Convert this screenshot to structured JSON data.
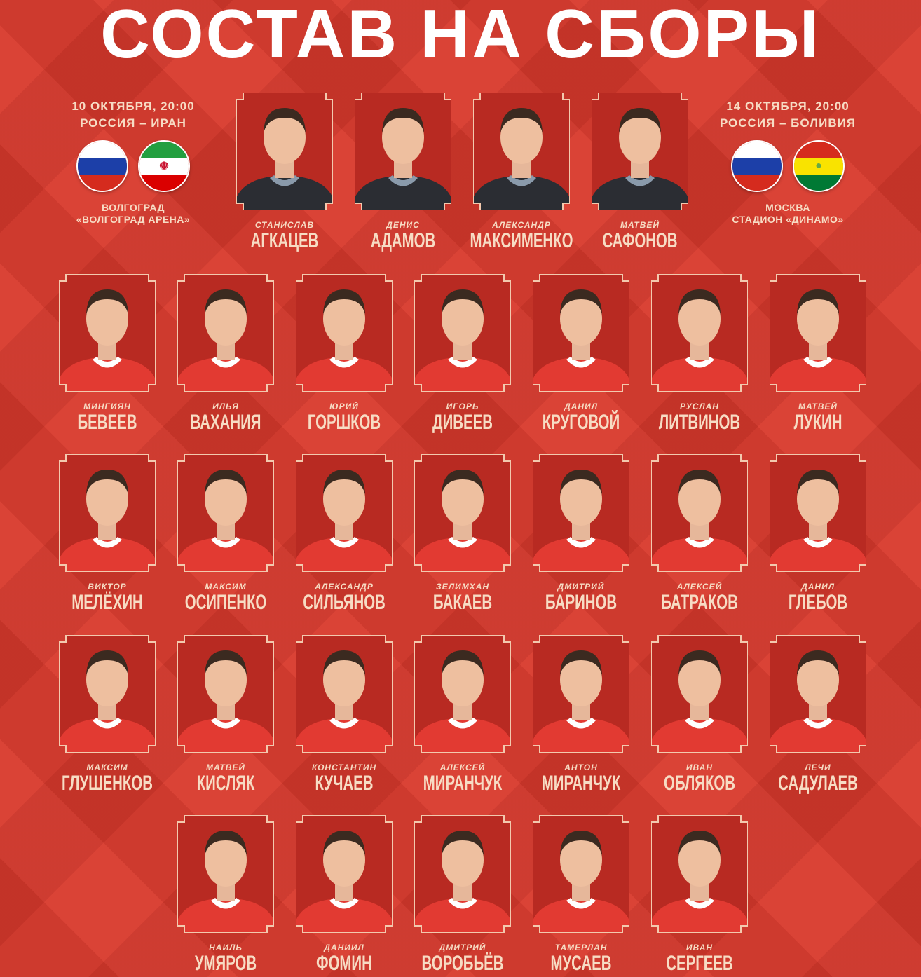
{
  "title": "СОСТАВ НА СБОРЫ",
  "matches": [
    {
      "date": "10 ОКТЯБРЯ, 20:00",
      "teams": "РОССИЯ – ИРАН",
      "city": "ВОЛГОГРАД",
      "stadium": "«ВОЛГОГРАД АРЕНА»",
      "flags": [
        "russia-flag",
        "iran-flag"
      ]
    },
    {
      "date": "14 ОКТЯБРЯ, 20:00",
      "teams": "РОССИЯ – БОЛИВИЯ",
      "city": "МОСКВА",
      "stadium": "СТАДИОН «ДИНАМО»",
      "flags": [
        "russia-flag",
        "bolivia-flag"
      ]
    }
  ],
  "colors": {
    "background": "#d8392c",
    "text": "#f7dcc4",
    "frame": "#f3c9ae"
  },
  "goalkeepers": [
    {
      "first": "СТАНИСЛАВ",
      "last": "АГКАЦЕВ"
    },
    {
      "first": "ДЕНИС",
      "last": "АДАМОВ"
    },
    {
      "first": "АЛЕКСАНДР",
      "last": "МАКСИМЕНКО"
    },
    {
      "first": "МАТВЕЙ",
      "last": "САФОНОВ"
    }
  ],
  "players": [
    [
      {
        "first": "МИНГИЯН",
        "last": "БЕВЕЕВ"
      },
      {
        "first": "ИЛЬЯ",
        "last": "ВАХАНИЯ"
      },
      {
        "first": "ЮРИЙ",
        "last": "ГОРШКОВ"
      },
      {
        "first": "ИГОРЬ",
        "last": "ДИВЕЕВ"
      },
      {
        "first": "ДАНИЛ",
        "last": "КРУГОВОЙ"
      },
      {
        "first": "РУСЛАН",
        "last": "ЛИТВИНОВ"
      },
      {
        "first": "МАТВЕЙ",
        "last": "ЛУКИН"
      }
    ],
    [
      {
        "first": "ВИКТОР",
        "last": "МЕЛЁХИН"
      },
      {
        "first": "МАКСИМ",
        "last": "ОСИПЕНКО"
      },
      {
        "first": "АЛЕКСАНДР",
        "last": "СИЛЬЯНОВ"
      },
      {
        "first": "ЗЕЛИМХАН",
        "last": "БАКАЕВ"
      },
      {
        "first": "ДМИТРИЙ",
        "last": "БАРИНОВ"
      },
      {
        "first": "АЛЕКСЕЙ",
        "last": "БАТРАКОВ"
      },
      {
        "first": "ДАНИЛ",
        "last": "ГЛЕБОВ"
      }
    ],
    [
      {
        "first": "МАКСИМ",
        "last": "ГЛУШЕНКОВ"
      },
      {
        "first": "МАТВЕЙ",
        "last": "КИСЛЯК"
      },
      {
        "first": "КОНСТАНТИН",
        "last": "КУЧАЕВ"
      },
      {
        "first": "АЛЕКСЕЙ",
        "last": "МИРАНЧУК"
      },
      {
        "first": "АНТОН",
        "last": "МИРАНЧУК"
      },
      {
        "first": "ИВАН",
        "last": "ОБЛЯКОВ"
      },
      {
        "first": "ЛЕЧИ",
        "last": "САДУЛАЕВ"
      }
    ],
    [
      {
        "first": "НАИЛЬ",
        "last": "УМЯРОВ"
      },
      {
        "first": "ДАНИИЛ",
        "last": "ФОМИН"
      },
      {
        "first": "ДМИТРИЙ",
        "last": "ВОРОБЬЁВ"
      },
      {
        "first": "ТАМЕРЛАН",
        "last": "МУСАЕВ"
      },
      {
        "first": "ИВАН",
        "last": "СЕРГЕЕВ"
      }
    ]
  ]
}
